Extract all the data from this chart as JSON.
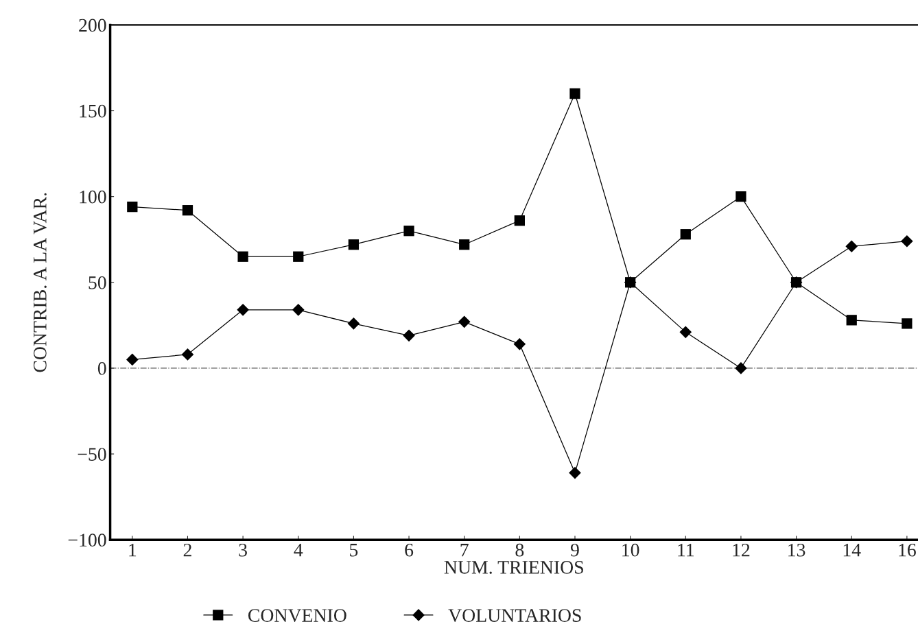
{
  "chart_data": {
    "type": "line",
    "xlabel": "NUM. TRIENIOS",
    "ylabel": "CONTRIB. A LA VAR.",
    "categories": [
      "1",
      "2",
      "3",
      "4",
      "5",
      "6",
      "7",
      "8",
      "9",
      "10",
      "11",
      "12",
      "13",
      "14",
      "16"
    ],
    "series": [
      {
        "name": "CONVENIO",
        "color": "#000000",
        "marker": "square",
        "values": [
          94,
          92,
          65,
          65,
          72,
          80,
          72,
          86,
          160,
          50,
          78,
          100,
          50,
          28,
          26
        ]
      },
      {
        "name": "VOLUNTARIOS",
        "color": "#000000",
        "marker": "diamond",
        "values": [
          5,
          8,
          34,
          34,
          26,
          19,
          27,
          14,
          -61,
          50,
          21,
          0,
          50,
          71,
          74
        ]
      }
    ],
    "ylim": [
      -100,
      200
    ],
    "yticks": [
      {
        "value": -100,
        "label": "−100"
      },
      {
        "value": -50,
        "label": "−50"
      },
      0,
      50,
      100,
      150,
      200
    ],
    "ref_lines": [
      {
        "axis": "y",
        "value": 0,
        "color": "#555555",
        "line_style": "dashdot"
      }
    ],
    "legend": "bottom",
    "grid": false,
    "line_style": "solid"
  }
}
